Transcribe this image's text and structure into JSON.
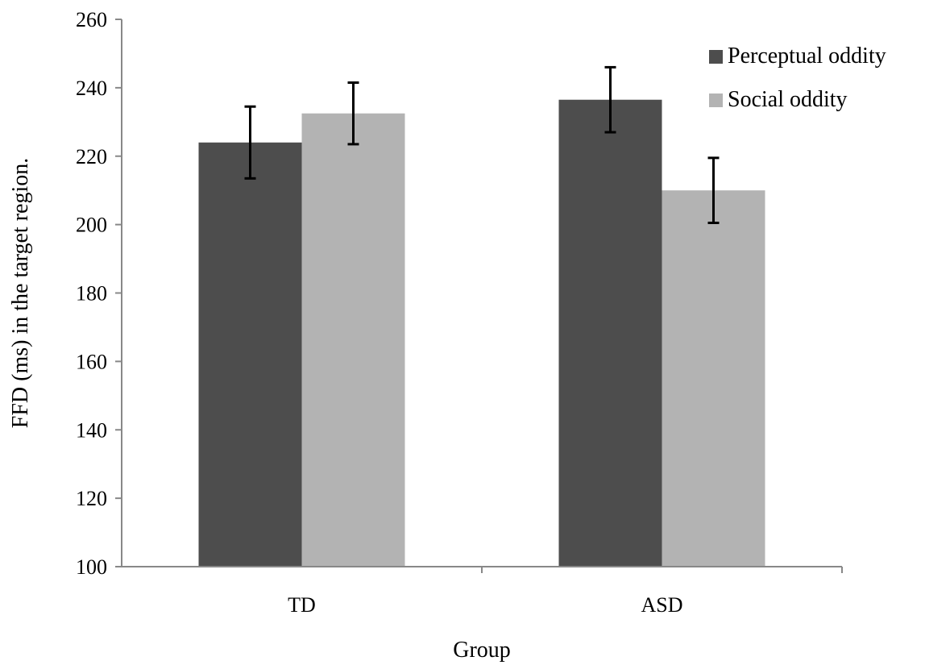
{
  "chart_data": {
    "type": "bar",
    "categories": [
      "TD",
      "ASD"
    ],
    "series": [
      {
        "name": "Perceptual oddity",
        "color": "#4d4d4d",
        "values": [
          224,
          236.5
        ],
        "error": [
          10.5,
          9.5
        ]
      },
      {
        "name": "Social oddity",
        "color": "#b3b3b3",
        "values": [
          232.5,
          210
        ],
        "error": [
          9,
          9.5
        ]
      }
    ],
    "xlabel": "Group",
    "ylabel": "FFD (ms) in the target region.",
    "ylim": [
      100,
      260
    ],
    "yticks": [
      100,
      120,
      140,
      160,
      180,
      200,
      220,
      240,
      260
    ],
    "grid": false,
    "legend_position": "top-right"
  }
}
